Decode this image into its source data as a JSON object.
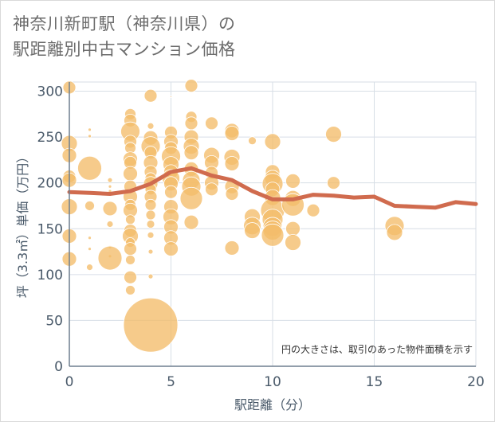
{
  "header": {
    "title_line1": "神奈川新町駅（神奈川県）の",
    "title_line2": "駅距離別中古マンション価格"
  },
  "colors": {
    "bubble_fill": "#f3bd6a",
    "bubble_stroke": "#ffffff",
    "line": "#d06b4e",
    "grid": "#d7dee6",
    "axis": "#6f7f8f",
    "text": "#4a5a6a"
  },
  "chart_data": {
    "type": "scatter",
    "xlabel": "駅距離（分）",
    "ylabel": "坪（3.3㎡）単価（万円）",
    "xlim": [
      0,
      20
    ],
    "ylim": [
      0,
      310
    ],
    "xticks": [
      0,
      5,
      10,
      15,
      20
    ],
    "yticks": [
      0,
      50,
      100,
      150,
      200,
      250,
      300
    ],
    "grid": true,
    "annotation": "円の大きさは、取引のあった物件面積を示す",
    "bubbles": [
      {
        "x": 0,
        "y": 304,
        "s": 8
      },
      {
        "x": 0,
        "y": 243,
        "s": 10
      },
      {
        "x": 0,
        "y": 230,
        "s": 9
      },
      {
        "x": 0,
        "y": 207,
        "s": 8
      },
      {
        "x": 0,
        "y": 203,
        "s": 9
      },
      {
        "x": 0,
        "y": 174,
        "s": 10
      },
      {
        "x": 0,
        "y": 142,
        "s": 9
      },
      {
        "x": 0,
        "y": 117,
        "s": 9
      },
      {
        "x": 1,
        "y": 258,
        "s": 2
      },
      {
        "x": 1,
        "y": 251,
        "s": 2
      },
      {
        "x": 1,
        "y": 216,
        "s": 15
      },
      {
        "x": 1,
        "y": 175,
        "s": 6
      },
      {
        "x": 1,
        "y": 140,
        "s": 2
      },
      {
        "x": 1,
        "y": 128,
        "s": 2
      },
      {
        "x": 1,
        "y": 108,
        "s": 4
      },
      {
        "x": 2,
        "y": 203,
        "s": 3
      },
      {
        "x": 2,
        "y": 196,
        "s": 2
      },
      {
        "x": 2,
        "y": 191,
        "s": 2
      },
      {
        "x": 2,
        "y": 172,
        "s": 9
      },
      {
        "x": 2,
        "y": 155,
        "s": 4
      },
      {
        "x": 2,
        "y": 130,
        "s": 2
      },
      {
        "x": 2,
        "y": 120,
        "s": 2
      },
      {
        "x": 2,
        "y": 118,
        "s": 15
      },
      {
        "x": 3,
        "y": 275,
        "s": 7
      },
      {
        "x": 3,
        "y": 268,
        "s": 8
      },
      {
        "x": 3,
        "y": 256,
        "s": 12
      },
      {
        "x": 3,
        "y": 245,
        "s": 8
      },
      {
        "x": 3,
        "y": 238,
        "s": 7
      },
      {
        "x": 3,
        "y": 226,
        "s": 9
      },
      {
        "x": 3,
        "y": 222,
        "s": 8
      },
      {
        "x": 3,
        "y": 210,
        "s": 9
      },
      {
        "x": 3,
        "y": 196,
        "s": 8
      },
      {
        "x": 3,
        "y": 185,
        "s": 9
      },
      {
        "x": 3,
        "y": 176,
        "s": 7
      },
      {
        "x": 3,
        "y": 170,
        "s": 9
      },
      {
        "x": 3,
        "y": 160,
        "s": 6
      },
      {
        "x": 3,
        "y": 148,
        "s": 8
      },
      {
        "x": 3,
        "y": 142,
        "s": 10
      },
      {
        "x": 3,
        "y": 135,
        "s": 6
      },
      {
        "x": 3,
        "y": 128,
        "s": 8
      },
      {
        "x": 3,
        "y": 116,
        "s": 6
      },
      {
        "x": 3,
        "y": 97,
        "s": 8
      },
      {
        "x": 3,
        "y": 83,
        "s": 6
      },
      {
        "x": 4,
        "y": 295,
        "s": 8
      },
      {
        "x": 4,
        "y": 262,
        "s": 4
      },
      {
        "x": 4,
        "y": 249,
        "s": 9
      },
      {
        "x": 4,
        "y": 240,
        "s": 12
      },
      {
        "x": 4,
        "y": 233,
        "s": 8
      },
      {
        "x": 4,
        "y": 222,
        "s": 9
      },
      {
        "x": 4,
        "y": 212,
        "s": 8
      },
      {
        "x": 4,
        "y": 205,
        "s": 7
      },
      {
        "x": 4,
        "y": 199,
        "s": 9
      },
      {
        "x": 4,
        "y": 193,
        "s": 7
      },
      {
        "x": 4,
        "y": 185,
        "s": 8
      },
      {
        "x": 4,
        "y": 176,
        "s": 7
      },
      {
        "x": 4,
        "y": 165,
        "s": 6
      },
      {
        "x": 4,
        "y": 155,
        "s": 5
      },
      {
        "x": 4,
        "y": 143,
        "s": 4
      },
      {
        "x": 4,
        "y": 125,
        "s": 3
      },
      {
        "x": 4,
        "y": 98,
        "s": 3
      },
      {
        "x": 4,
        "y": 45,
        "s": 34
      },
      {
        "x": 5,
        "y": 294,
        "s": 1
      },
      {
        "x": 5,
        "y": 255,
        "s": 8
      },
      {
        "x": 5,
        "y": 245,
        "s": 9
      },
      {
        "x": 5,
        "y": 238,
        "s": 8
      },
      {
        "x": 5,
        "y": 229,
        "s": 12
      },
      {
        "x": 5,
        "y": 220,
        "s": 10
      },
      {
        "x": 5,
        "y": 212,
        "s": 9
      },
      {
        "x": 5,
        "y": 205,
        "s": 11
      },
      {
        "x": 5,
        "y": 199,
        "s": 9
      },
      {
        "x": 5,
        "y": 190,
        "s": 8
      },
      {
        "x": 5,
        "y": 174,
        "s": 9
      },
      {
        "x": 5,
        "y": 163,
        "s": 10
      },
      {
        "x": 5,
        "y": 152,
        "s": 9
      },
      {
        "x": 5,
        "y": 140,
        "s": 9
      },
      {
        "x": 5,
        "y": 128,
        "s": 9
      },
      {
        "x": 6,
        "y": 306,
        "s": 8
      },
      {
        "x": 6,
        "y": 272,
        "s": 7
      },
      {
        "x": 6,
        "y": 265,
        "s": 8
      },
      {
        "x": 6,
        "y": 250,
        "s": 9
      },
      {
        "x": 6,
        "y": 240,
        "s": 10
      },
      {
        "x": 6,
        "y": 233,
        "s": 9
      },
      {
        "x": 6,
        "y": 215,
        "s": 9
      },
      {
        "x": 6,
        "y": 203,
        "s": 11
      },
      {
        "x": 6,
        "y": 196,
        "s": 12
      },
      {
        "x": 6,
        "y": 183,
        "s": 14
      },
      {
        "x": 6,
        "y": 157,
        "s": 9
      },
      {
        "x": 7,
        "y": 265,
        "s": 8
      },
      {
        "x": 7,
        "y": 230,
        "s": 10
      },
      {
        "x": 7,
        "y": 222,
        "s": 9
      },
      {
        "x": 7,
        "y": 211,
        "s": 8
      },
      {
        "x": 7,
        "y": 200,
        "s": 9
      },
      {
        "x": 7,
        "y": 193,
        "s": 8
      },
      {
        "x": 8,
        "y": 257,
        "s": 9
      },
      {
        "x": 8,
        "y": 254,
        "s": 9
      },
      {
        "x": 8,
        "y": 228,
        "s": 10
      },
      {
        "x": 8,
        "y": 221,
        "s": 9
      },
      {
        "x": 8,
        "y": 196,
        "s": 9
      },
      {
        "x": 8,
        "y": 188,
        "s": 8
      },
      {
        "x": 8,
        "y": 129,
        "s": 9
      },
      {
        "x": 9,
        "y": 246,
        "s": 5
      },
      {
        "x": 9,
        "y": 163,
        "s": 10
      },
      {
        "x": 9,
        "y": 153,
        "s": 11
      },
      {
        "x": 9,
        "y": 148,
        "s": 10
      },
      {
        "x": 10,
        "y": 245,
        "s": 10
      },
      {
        "x": 10,
        "y": 212,
        "s": 9
      },
      {
        "x": 10,
        "y": 205,
        "s": 10
      },
      {
        "x": 10,
        "y": 199,
        "s": 13
      },
      {
        "x": 10,
        "y": 193,
        "s": 9
      },
      {
        "x": 10,
        "y": 184,
        "s": 10
      },
      {
        "x": 10,
        "y": 170,
        "s": 15
      },
      {
        "x": 10,
        "y": 160,
        "s": 13
      },
      {
        "x": 10,
        "y": 152,
        "s": 12
      },
      {
        "x": 10,
        "y": 148,
        "s": 12
      },
      {
        "x": 10,
        "y": 143,
        "s": 14
      },
      {
        "x": 11,
        "y": 202,
        "s": 9
      },
      {
        "x": 11,
        "y": 183,
        "s": 10
      },
      {
        "x": 11,
        "y": 176,
        "s": 14
      },
      {
        "x": 11,
        "y": 150,
        "s": 9
      },
      {
        "x": 11,
        "y": 135,
        "s": 10
      },
      {
        "x": 12,
        "y": 170,
        "s": 8
      },
      {
        "x": 13,
        "y": 253,
        "s": 10
      },
      {
        "x": 13,
        "y": 200,
        "s": 8
      },
      {
        "x": 16,
        "y": 153,
        "s": 12
      },
      {
        "x": 16,
        "y": 146,
        "s": 10
      }
    ],
    "average_line": {
      "name": "",
      "x": [
        0,
        1,
        2,
        3,
        4,
        5,
        6,
        7,
        8,
        9,
        10,
        11,
        12,
        13,
        14,
        15,
        16,
        17,
        18,
        19,
        20
      ],
      "y": [
        190,
        189,
        188,
        191,
        199,
        212,
        216,
        208,
        203,
        191,
        182,
        182,
        187,
        186,
        184,
        185,
        175,
        174,
        173,
        179,
        177
      ]
    }
  }
}
